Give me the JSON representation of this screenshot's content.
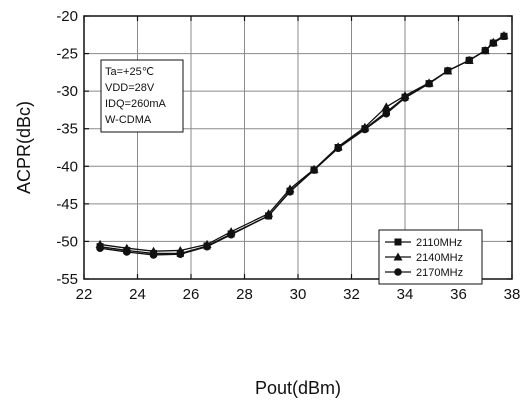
{
  "chart_data": {
    "type": "line",
    "xlabel": "Pout(dBm)",
    "ylabel": "ACPR(dBc)",
    "xlim": [
      22,
      38
    ],
    "ylim": [
      -55,
      -20
    ],
    "xticks": [
      "22",
      "24",
      "26",
      "28",
      "30",
      "32",
      "34",
      "36",
      "38"
    ],
    "yticks": [
      "-20",
      "-25",
      "-30",
      "-35",
      "-40",
      "-45",
      "-50",
      "-55"
    ],
    "grid": true,
    "legend_position": "bottom-right",
    "conditions": [
      "Ta=+25℃",
      "VDD=28V",
      "IDQ=260mA",
      "W-CDMA"
    ],
    "series": [
      {
        "name": "2110MHz",
        "marker": "square",
        "x": [
          22.6,
          23.6,
          24.6,
          25.6,
          26.6,
          27.5,
          28.9,
          29.7,
          30.6,
          31.5,
          32.5,
          33.3,
          34.0,
          34.9,
          35.6,
          36.4,
          37.0,
          37.3,
          37.7
        ],
        "y": [
          -50.7,
          -51.2,
          -51.6,
          -51.6,
          -50.6,
          -49.0,
          -46.6,
          -43.3,
          -40.5,
          -37.5,
          -35.0,
          -32.8,
          -30.8,
          -29.0,
          -27.3,
          -25.9,
          -24.6,
          -23.6,
          -22.7
        ]
      },
      {
        "name": "2140MHz",
        "marker": "triangle",
        "x": [
          22.6,
          23.6,
          24.6,
          25.6,
          26.6,
          27.5,
          28.9,
          29.7,
          30.6,
          31.5,
          32.5,
          33.3,
          34.0,
          34.9,
          35.6,
          36.4,
          37.0,
          37.3,
          37.7
        ],
        "y": [
          -50.4,
          -50.9,
          -51.3,
          -51.2,
          -50.4,
          -48.7,
          -46.3,
          -43.0,
          -40.4,
          -37.4,
          -34.8,
          -32.1,
          -30.6,
          -28.9,
          -27.3,
          -25.9,
          -24.6,
          -23.5,
          -22.6
        ]
      },
      {
        "name": "2170MHz",
        "marker": "circle",
        "x": [
          22.6,
          23.6,
          24.6,
          25.6,
          26.6,
          27.5,
          28.9,
          29.7,
          30.6,
          31.5,
          32.5,
          33.3,
          34.0,
          34.9,
          35.6,
          36.4,
          37.0,
          37.3,
          37.7
        ],
        "y": [
          -50.9,
          -51.4,
          -51.8,
          -51.7,
          -50.7,
          -49.1,
          -46.6,
          -43.4,
          -40.5,
          -37.6,
          -35.1,
          -33.0,
          -30.9,
          -29.0,
          -27.3,
          -25.9,
          -24.6,
          -23.6,
          -22.7
        ]
      }
    ]
  }
}
